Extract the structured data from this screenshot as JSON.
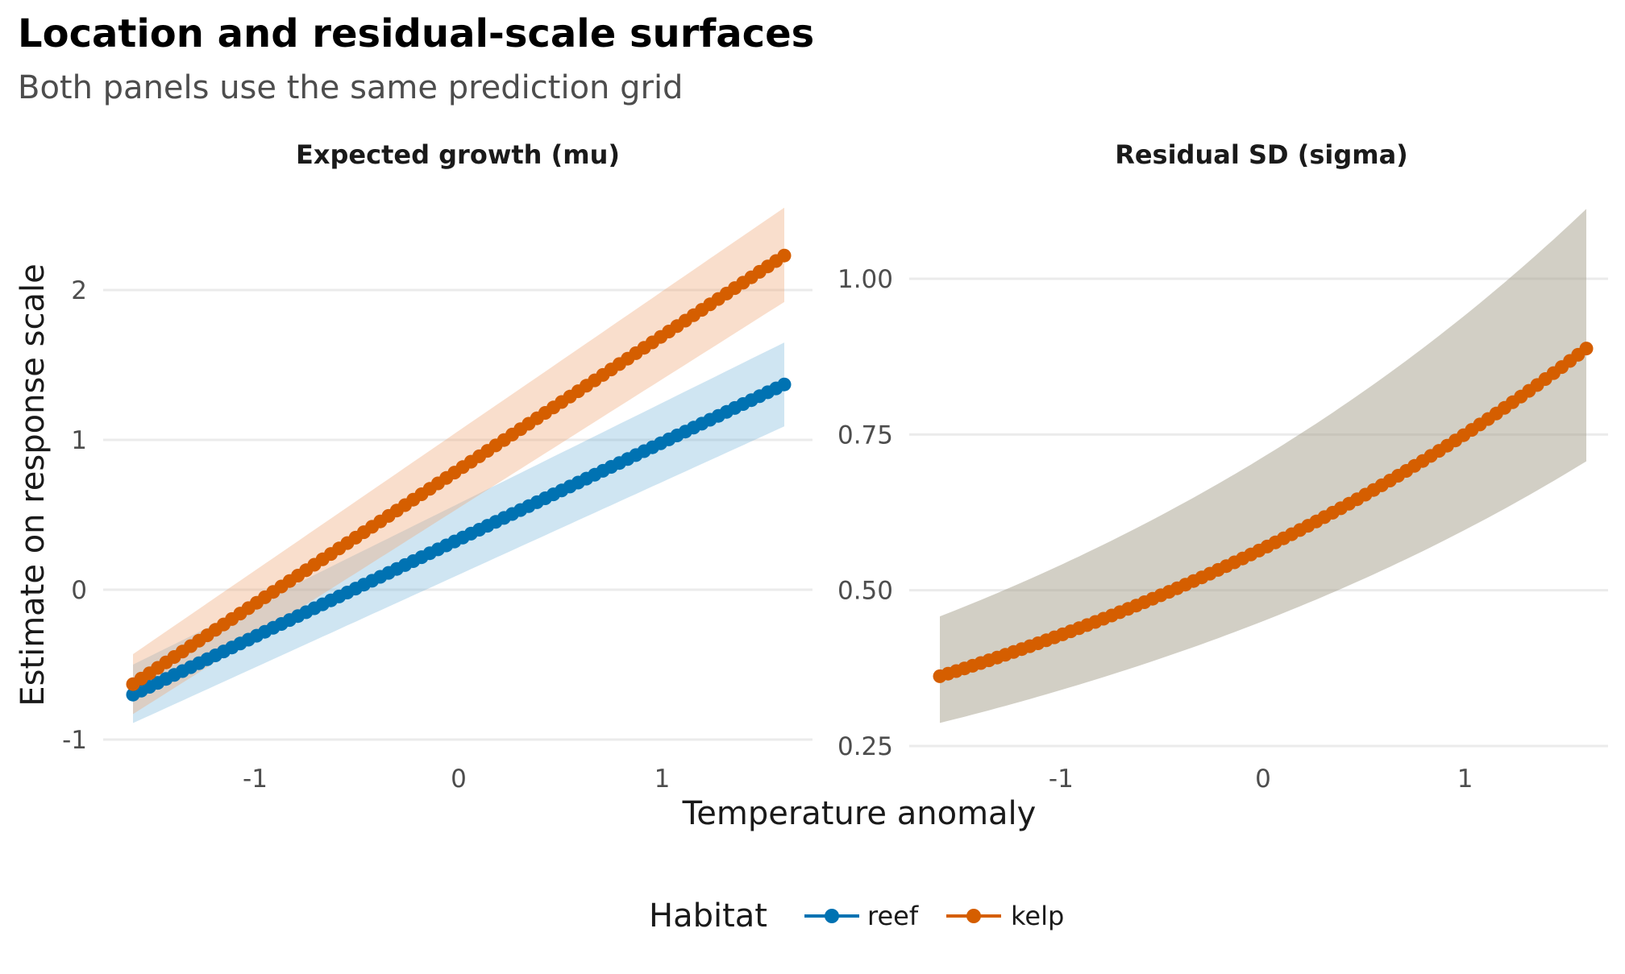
{
  "title": "Location and residual-scale surfaces",
  "subtitle": "Both panels use the same prediction grid",
  "xlabel": "Temperature anomaly",
  "ylabel": "Estimate on response scale",
  "legend": {
    "title": "Habitat",
    "placement": "bottom",
    "items": [
      {
        "label": "reef",
        "color": "#0072B2"
      },
      {
        "label": "kelp",
        "color": "#D55E00"
      }
    ]
  },
  "chart_data": [
    {
      "type": "line",
      "panel_title": "Expected growth (mu)",
      "x_range": [
        -1.6,
        1.6
      ],
      "x_points": 80,
      "xlim": [
        -1.6,
        1.6
      ],
      "ylim": [
        -1,
        2.55
      ],
      "x_ticks": [
        -1,
        0,
        1
      ],
      "x_tick_labels": [
        "-1",
        "0",
        "1"
      ],
      "y_ticks": [
        -1,
        0,
        1,
        2
      ],
      "y_tick_labels": [
        "-1",
        "0",
        "1",
        "2"
      ],
      "grid": true,
      "series": [
        {
          "name": "reef",
          "color": "#0072B2",
          "band_color": "#6baed6",
          "band_opacity": 0.32,
          "start": -0.7,
          "end": 1.37,
          "band_start": [
            -0.89,
            -0.5
          ],
          "band_end": [
            1.09,
            1.65
          ]
        },
        {
          "name": "kelp",
          "color": "#D55E00",
          "band_color": "#f0a878",
          "band_opacity": 0.38,
          "start": -0.63,
          "end": 2.23,
          "band_start": [
            -0.83,
            -0.43
          ],
          "band_end": [
            1.92,
            2.55
          ]
        }
      ]
    },
    {
      "type": "line",
      "panel_title": "Residual SD (sigma)",
      "x_range": [
        -1.6,
        1.6
      ],
      "x_points": 80,
      "xlim": [
        -1.6,
        1.6
      ],
      "ylim": [
        0.25,
        1.11
      ],
      "x_ticks": [
        -1,
        0,
        1
      ],
      "x_tick_labels": [
        "-1",
        "0",
        "1"
      ],
      "y_ticks": [
        0.25,
        0.5,
        0.75,
        1.0
      ],
      "y_tick_labels": [
        "0.25",
        "0.50",
        "0.75",
        "1.00"
      ],
      "grid": true,
      "series": [
        {
          "name": "kelp",
          "color": "#D55E00",
          "band_color": "#a6a08c",
          "band_opacity": 0.5,
          "start": 0.362,
          "end": 0.888,
          "log_scale_curve": true,
          "band_start": [
            0.287,
            0.458
          ],
          "band_end": [
            0.707,
            1.112
          ]
        }
      ]
    }
  ]
}
